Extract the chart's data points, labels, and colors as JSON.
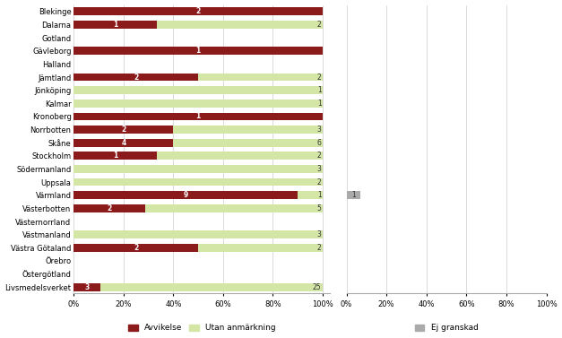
{
  "categories": [
    "Blekinge",
    "Dalarna",
    "Gotland",
    "Gävleborg",
    "Halland",
    "Jämtland",
    "Jönköping",
    "Kalmar",
    "Kronoberg",
    "Norrbotten",
    "Skåne",
    "Stockholm",
    "Södermanland",
    "Uppsala",
    "Värmland",
    "Västerbotten",
    "Västernorrland",
    "Västmanland",
    "Västra Götaland",
    "Örebro",
    "Östergötland",
    "Livsmedelsverket"
  ],
  "avvikelse": [
    2,
    1,
    0,
    1,
    0,
    2,
    0,
    0,
    1,
    2,
    4,
    1,
    0,
    0,
    9,
    2,
    0,
    0,
    2,
    0,
    0,
    3
  ],
  "utan_anmarkning": [
    0,
    2,
    0,
    0,
    0,
    2,
    1,
    1,
    0,
    3,
    6,
    2,
    3,
    2,
    1,
    5,
    0,
    3,
    2,
    0,
    0,
    25
  ],
  "ej_granskad": [
    0,
    0,
    0,
    0,
    0,
    0,
    0,
    0,
    0,
    0,
    0,
    0,
    0,
    0,
    1,
    0,
    0,
    0,
    0,
    0,
    0,
    0
  ],
  "avvikelse_color": "#8B1A1A",
  "utan_anmarkning_color": "#D4E6A5",
  "ej_granskad_color": "#AAAAAA",
  "background_color": "#FFFFFF",
  "grid_color": "#CCCCCC",
  "text_color": "#333333",
  "bar_height": 0.6,
  "legend_avvikelse": "Avvikelse",
  "legend_utan": "Utan anmärkning",
  "legend_ej": "Ej granskad"
}
